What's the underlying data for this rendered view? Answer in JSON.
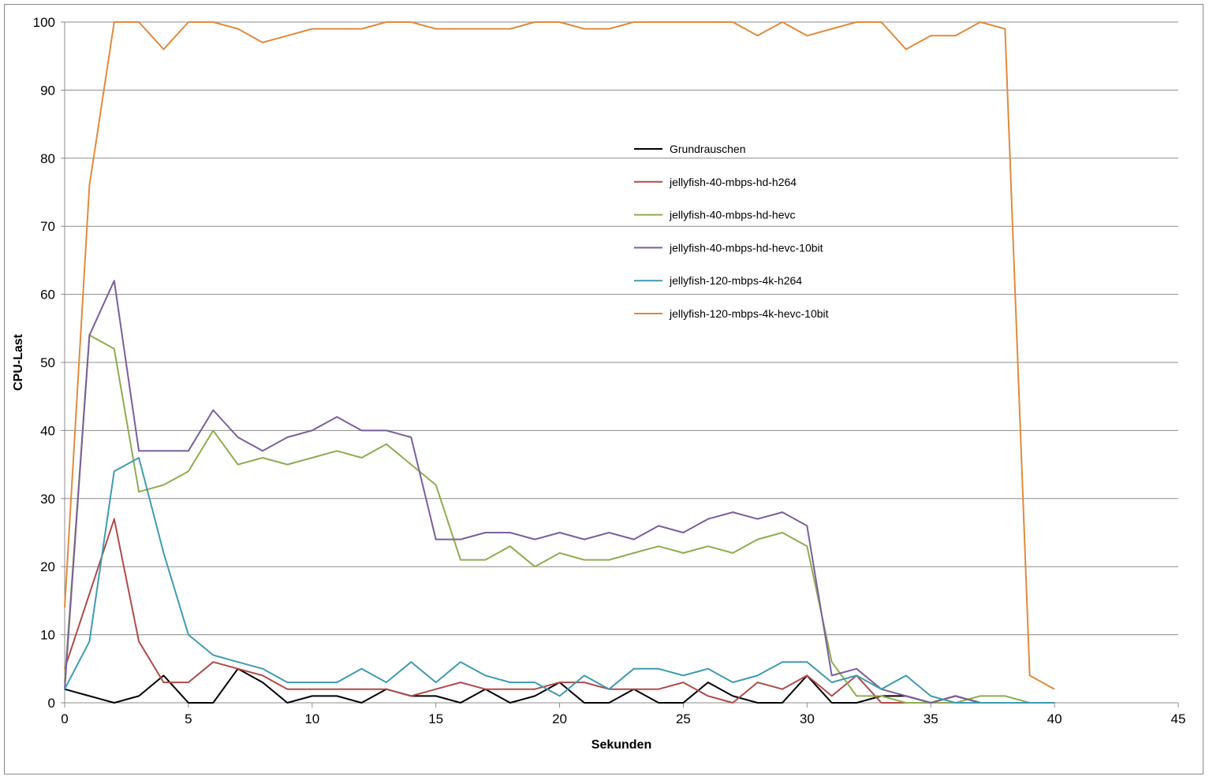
{
  "chart_data": {
    "type": "line",
    "xlabel": "Sekunden",
    "ylabel": "CPU-Last",
    "xlim": [
      0,
      45
    ],
    "ylim": [
      0,
      100
    ],
    "xticks": [
      0,
      5,
      10,
      15,
      20,
      25,
      30,
      35,
      40,
      45
    ],
    "yticks": [
      0,
      10,
      20,
      30,
      40,
      50,
      60,
      70,
      80,
      90,
      100
    ],
    "grid": "horizontal",
    "legend_position": "center-right, inside plot",
    "series": [
      {
        "name": "Grundrauschen",
        "color": "#000000",
        "x": [
          0,
          1,
          2,
          3,
          4,
          5,
          6,
          7,
          8,
          9,
          10,
          11,
          12,
          13,
          14,
          15,
          16,
          17,
          18,
          19,
          20,
          21,
          22,
          23,
          24,
          25,
          26,
          27,
          28,
          29,
          30,
          31,
          32,
          33,
          34,
          35,
          36,
          37,
          38,
          39,
          40
        ],
        "y": [
          2,
          1,
          0,
          1,
          4,
          0,
          0,
          5,
          3,
          0,
          1,
          1,
          0,
          2,
          1,
          1,
          0,
          2,
          0,
          1,
          3,
          0,
          0,
          2,
          0,
          0,
          3,
          1,
          0,
          0,
          4,
          0,
          0,
          1,
          1,
          0,
          1,
          0,
          0,
          0,
          0
        ]
      },
      {
        "name": "jellyfish-40-mbps-hd-h264",
        "color": "#b04a4a",
        "x": [
          0,
          1,
          2,
          3,
          4,
          5,
          6,
          7,
          8,
          9,
          10,
          11,
          12,
          13,
          14,
          15,
          16,
          17,
          18,
          19,
          20,
          21,
          22,
          23,
          24,
          25,
          26,
          27,
          28,
          29,
          30,
          31,
          32,
          33,
          34,
          35,
          36,
          37,
          38,
          39,
          40
        ],
        "y": [
          5,
          16,
          27,
          9,
          3,
          3,
          6,
          5,
          4,
          2,
          2,
          2,
          2,
          2,
          1,
          2,
          3,
          2,
          2,
          2,
          3,
          3,
          2,
          2,
          2,
          3,
          1,
          0,
          3,
          2,
          4,
          1,
          4,
          0,
          0,
          0,
          1,
          0,
          0,
          0,
          0
        ]
      },
      {
        "name": "jellyfish-40-mbps-hd-hevc",
        "color": "#8fac4f",
        "x": [
          0,
          1,
          2,
          3,
          4,
          5,
          6,
          7,
          8,
          9,
          10,
          11,
          12,
          13,
          14,
          15,
          16,
          17,
          18,
          19,
          20,
          21,
          22,
          23,
          24,
          25,
          26,
          27,
          28,
          29,
          30,
          31,
          32,
          33,
          34,
          35,
          36,
          37,
          38,
          39,
          40
        ],
        "y": [
          3,
          54,
          52,
          31,
          32,
          34,
          40,
          35,
          36,
          35,
          36,
          37,
          36,
          38,
          35,
          32,
          21,
          21,
          23,
          20,
          22,
          21,
          21,
          22,
          23,
          22,
          23,
          22,
          24,
          25,
          23,
          6,
          1,
          1,
          0,
          0,
          0,
          1,
          1,
          0,
          0
        ]
      },
      {
        "name": "jellyfish-40-mbps-hd-hevc-10bit",
        "color": "#7a5f9a",
        "x": [
          0,
          1,
          2,
          3,
          4,
          5,
          6,
          7,
          8,
          9,
          10,
          11,
          12,
          13,
          14,
          15,
          16,
          17,
          18,
          19,
          20,
          21,
          22,
          23,
          24,
          25,
          26,
          27,
          28,
          29,
          30,
          31,
          32,
          33,
          34,
          35,
          36,
          37,
          38,
          39,
          40
        ],
        "y": [
          2,
          54,
          62,
          37,
          37,
          37,
          43,
          39,
          37,
          39,
          40,
          42,
          40,
          40,
          39,
          24,
          24,
          25,
          25,
          24,
          25,
          24,
          25,
          24,
          26,
          25,
          27,
          28,
          27,
          28,
          26,
          4,
          5,
          2,
          1,
          0,
          1,
          0,
          0,
          0,
          0
        ]
      },
      {
        "name": "jellyfish-120-mbps-4k-h264",
        "color": "#3f9bb0",
        "x": [
          0,
          1,
          2,
          3,
          4,
          5,
          6,
          7,
          8,
          9,
          10,
          11,
          12,
          13,
          14,
          15,
          16,
          17,
          18,
          19,
          20,
          21,
          22,
          23,
          24,
          25,
          26,
          27,
          28,
          29,
          30,
          31,
          32,
          33,
          34,
          35,
          36,
          37,
          38,
          39,
          40
        ],
        "y": [
          2,
          9,
          34,
          36,
          22,
          10,
          7,
          6,
          5,
          3,
          3,
          3,
          5,
          3,
          6,
          3,
          6,
          4,
          3,
          3,
          1,
          4,
          2,
          5,
          5,
          4,
          5,
          3,
          4,
          6,
          6,
          3,
          4,
          2,
          4,
          1,
          0,
          0,
          0,
          0,
          0
        ]
      },
      {
        "name": "jellyfish-120-mbps-4k-hevc-10bit",
        "color": "#e08a3c",
        "x": [
          0,
          1,
          2,
          3,
          4,
          5,
          6,
          7,
          8,
          9,
          10,
          11,
          12,
          13,
          14,
          15,
          16,
          17,
          18,
          19,
          20,
          21,
          22,
          23,
          24,
          25,
          26,
          27,
          28,
          29,
          30,
          31,
          32,
          33,
          34,
          35,
          36,
          37,
          38,
          39,
          40
        ],
        "y": [
          14,
          76,
          100,
          100,
          96,
          100,
          100,
          99,
          97,
          98,
          99,
          99,
          99,
          100,
          100,
          99,
          99,
          99,
          99,
          100,
          100,
          99,
          99,
          100,
          100,
          100,
          100,
          100,
          98,
          100,
          98,
          99,
          100,
          100,
          96,
          98,
          98,
          100,
          99,
          4,
          2
        ]
      }
    ]
  }
}
